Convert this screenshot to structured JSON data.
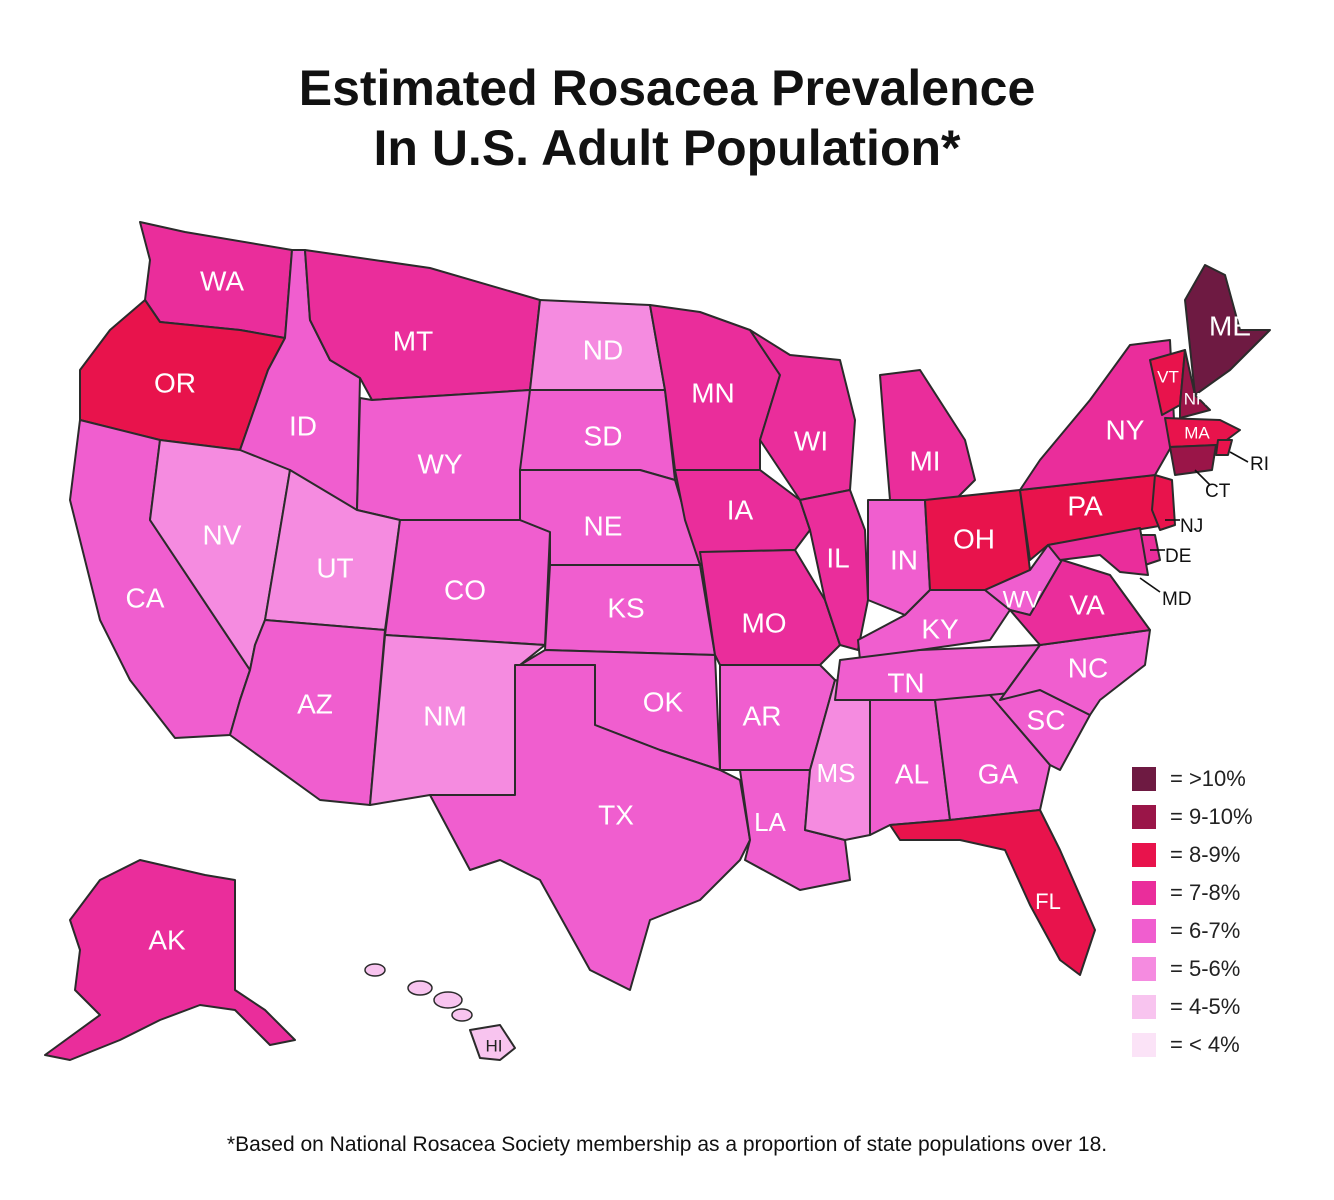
{
  "title_line1": "Estimated Rosacea Prevalence",
  "title_line2": "In U.S. Adult Population*",
  "footnote": "*Based on National Rosacea Society membership as a proportion of state populations over 18.",
  "legend": [
    {
      "label": "= >10%",
      "color": "#6e1a42"
    },
    {
      "label": "= 9-10%",
      "color": "#9a1548"
    },
    {
      "label": "= 8-9%",
      "color": "#e8134c"
    },
    {
      "label": "= 7-8%",
      "color": "#ea2d9b"
    },
    {
      "label": "= 6-7%",
      "color": "#f05ecf"
    },
    {
      "label": "= 5-6%",
      "color": "#f58be0"
    },
    {
      "label": "= 4-5%",
      "color": "#f8c4ef"
    },
    {
      "label": "= < 4%",
      "color": "#fbe3f7"
    }
  ],
  "states": [
    {
      "code": "WA",
      "color": "#ea2d9b"
    },
    {
      "code": "OR",
      "color": "#e8134c"
    },
    {
      "code": "CA",
      "color": "#f05ecf"
    },
    {
      "code": "ID",
      "color": "#f05ecf"
    },
    {
      "code": "NV",
      "color": "#f58be0"
    },
    {
      "code": "MT",
      "color": "#ea2d9b"
    },
    {
      "code": "WY",
      "color": "#f05ecf"
    },
    {
      "code": "UT",
      "color": "#f58be0"
    },
    {
      "code": "AZ",
      "color": "#f05ecf"
    },
    {
      "code": "CO",
      "color": "#f05ecf"
    },
    {
      "code": "NM",
      "color": "#f58be0"
    },
    {
      "code": "ND",
      "color": "#f58be0"
    },
    {
      "code": "SD",
      "color": "#f05ecf"
    },
    {
      "code": "NE",
      "color": "#f05ecf"
    },
    {
      "code": "KS",
      "color": "#f05ecf"
    },
    {
      "code": "OK",
      "color": "#f05ecf"
    },
    {
      "code": "TX",
      "color": "#f05ecf"
    },
    {
      "code": "MN",
      "color": "#ea2d9b"
    },
    {
      "code": "IA",
      "color": "#ea2d9b"
    },
    {
      "code": "MO",
      "color": "#ea2d9b"
    },
    {
      "code": "AR",
      "color": "#f05ecf"
    },
    {
      "code": "LA",
      "color": "#f05ecf"
    },
    {
      "code": "WI",
      "color": "#ea2d9b"
    },
    {
      "code": "IL",
      "color": "#ea2d9b"
    },
    {
      "code": "MS",
      "color": "#f58be0"
    },
    {
      "code": "MI",
      "color": "#ea2d9b"
    },
    {
      "code": "IN",
      "color": "#f05ecf"
    },
    {
      "code": "KY",
      "color": "#f05ecf"
    },
    {
      "code": "TN",
      "color": "#f05ecf"
    },
    {
      "code": "AL",
      "color": "#f05ecf"
    },
    {
      "code": "GA",
      "color": "#f05ecf"
    },
    {
      "code": "FL",
      "color": "#e8134c"
    },
    {
      "code": "SC",
      "color": "#f05ecf"
    },
    {
      "code": "NC",
      "color": "#f05ecf"
    },
    {
      "code": "OH",
      "color": "#e8134c"
    },
    {
      "code": "WV",
      "color": "#f05ecf"
    },
    {
      "code": "VA",
      "color": "#ea2d9b"
    },
    {
      "code": "PA",
      "color": "#e8134c"
    },
    {
      "code": "NY",
      "color": "#ea2d9b"
    },
    {
      "code": "ME",
      "color": "#6e1a42"
    },
    {
      "code": "VT",
      "color": "#e8134c"
    },
    {
      "code": "NH",
      "color": "#9a1548"
    },
    {
      "code": "MA",
      "color": "#e8134c"
    },
    {
      "code": "RI",
      "color": "#e8134c"
    },
    {
      "code": "CT",
      "color": "#9a1548"
    },
    {
      "code": "NJ",
      "color": "#e8134c"
    },
    {
      "code": "DE",
      "color": "#ea2d9b"
    },
    {
      "code": "MD",
      "color": "#ea2d9b"
    },
    {
      "code": "AK",
      "color": "#ea2d9b"
    },
    {
      "code": "HI",
      "color": "#f8c4ef"
    }
  ]
}
